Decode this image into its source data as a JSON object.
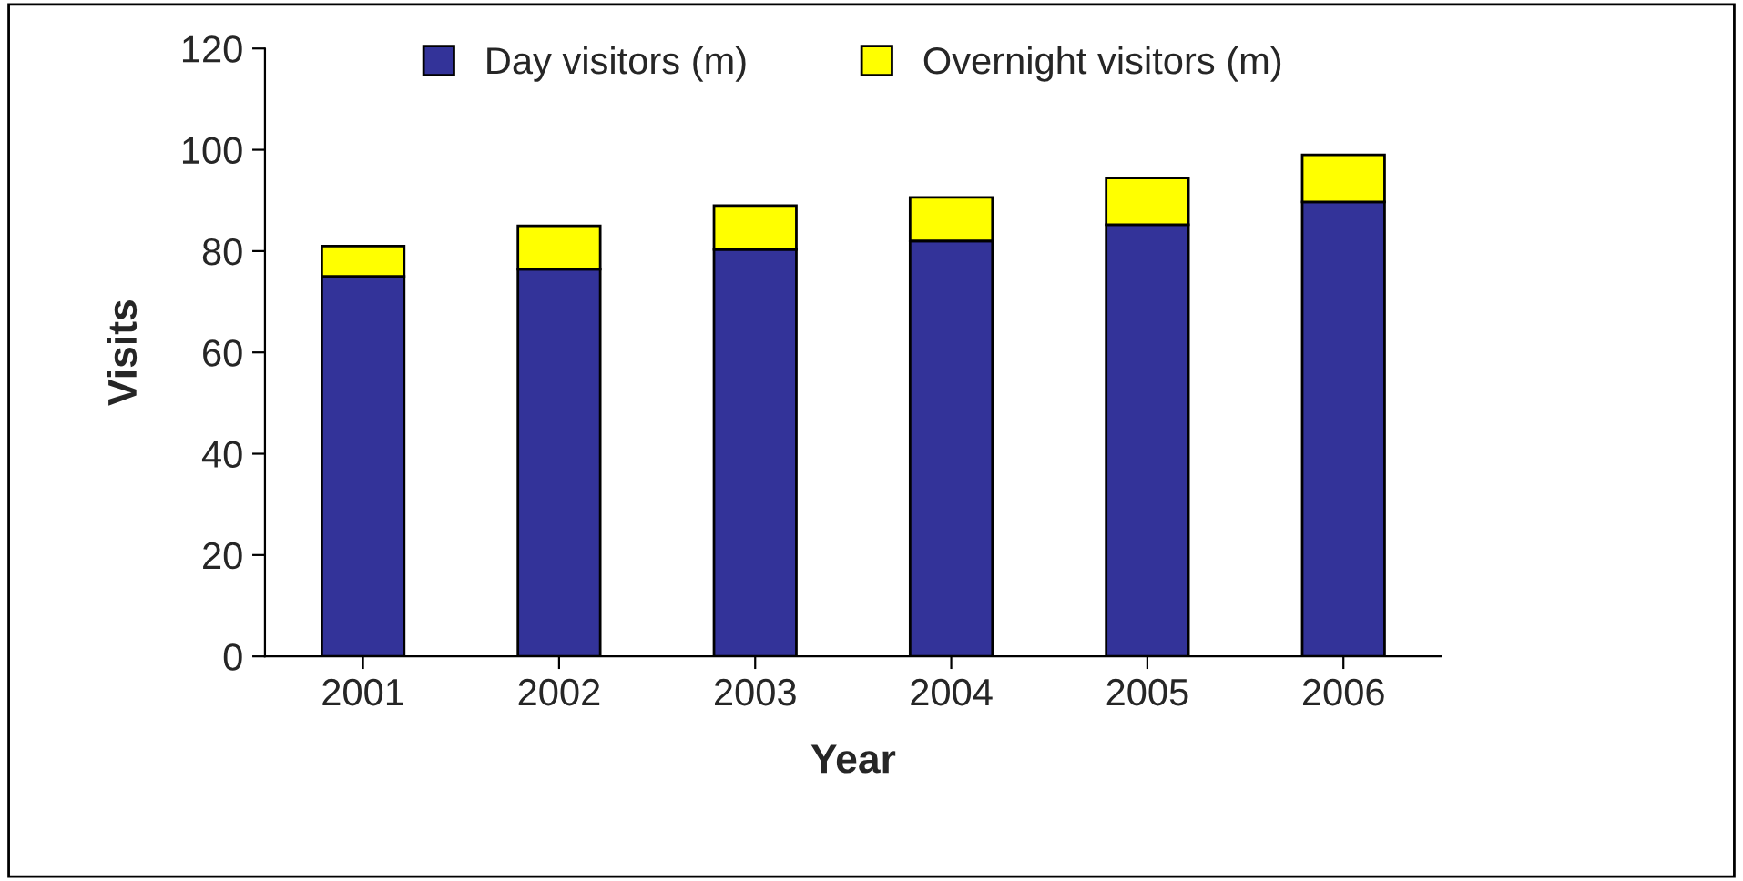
{
  "chart_data": {
    "type": "bar",
    "stacked": true,
    "xlabel": "Year",
    "ylabel": "Visits",
    "categories": [
      "2001",
      "2002",
      "2003",
      "2004",
      "2005",
      "2006"
    ],
    "series": [
      {
        "name": "Day visitors (m)",
        "color": "#333399",
        "values": [
          75,
          76.4,
          80.3,
          82,
          85.2,
          89.7
        ]
      },
      {
        "name": "Overnight visitors (m)",
        "color": "#ffff00",
        "values": [
          6,
          8.6,
          8.7,
          8.6,
          9.2,
          9.3
        ]
      }
    ],
    "ylim": [
      0,
      120
    ],
    "yticks": [
      0,
      20,
      40,
      60,
      80,
      100,
      120
    ],
    "grid": false,
    "legend": "top"
  }
}
